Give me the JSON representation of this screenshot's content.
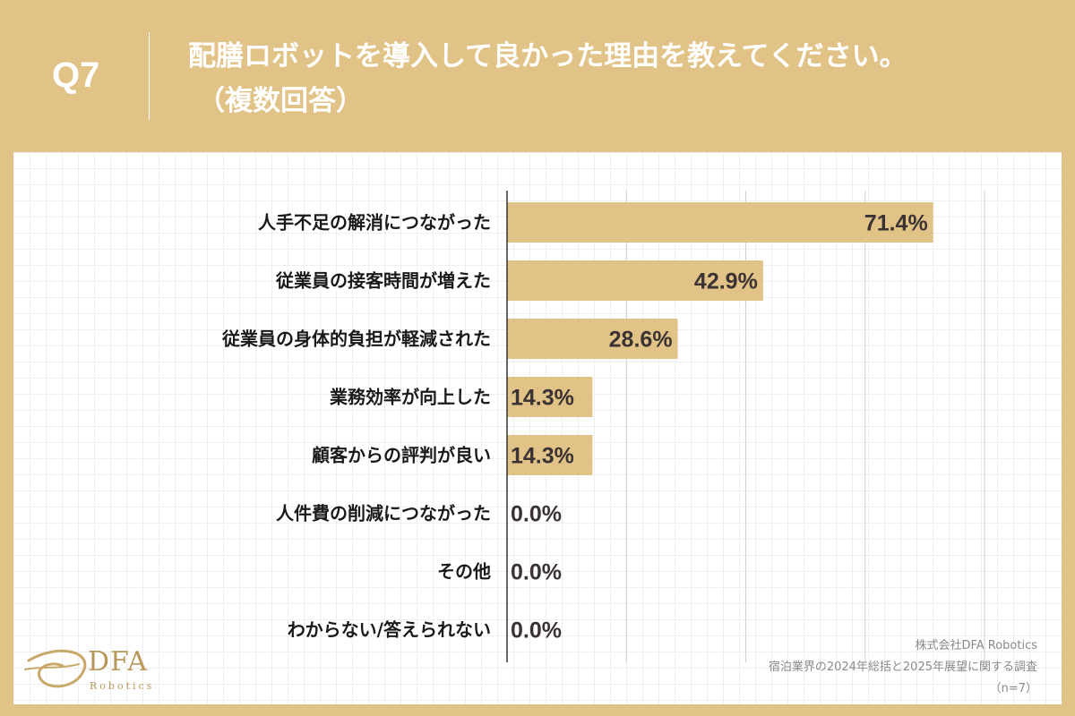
{
  "header": {
    "question_number": "Q7",
    "title_line1": "配膳ロボットを導入して良かった理由を教えてください。",
    "title_line2": "（複数回答）"
  },
  "chart_data": {
    "type": "bar",
    "orientation": "horizontal",
    "categories": [
      "人手不足の解消につながった",
      "従業員の接客時間が増えた",
      "従業員の身体的負担が軽減された",
      "業務効率が向上した",
      "顧客からの評判が良い",
      "人件費の削減につながった",
      "その他",
      "わからない/答えられない"
    ],
    "values": [
      71.4,
      42.9,
      28.6,
      14.3,
      14.3,
      0.0,
      0.0,
      0.0
    ],
    "value_labels": [
      "71.4%",
      "42.9%",
      "28.6%",
      "14.3%",
      "14.3%",
      "0.0%",
      "0.0%",
      "0.0%"
    ],
    "xlim": [
      0,
      80
    ],
    "grid": true,
    "bar_color": "#E2C387"
  },
  "logo": {
    "name": "DFA",
    "sub": "Robotics"
  },
  "source": {
    "line1": "株式会社DFA Robotics",
    "line2": "宿泊業界の2024年総括と2025年展望に関する調査",
    "line3": "（n=7）"
  }
}
